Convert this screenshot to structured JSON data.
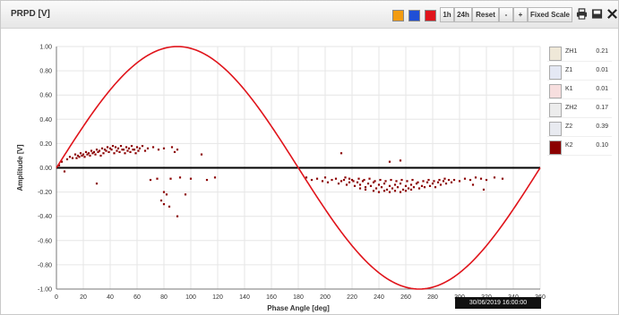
{
  "window": {
    "title": "PRPD [V]"
  },
  "toolbar": {
    "colors": [
      "#f39c12",
      "#1f4fd6",
      "#e0141b"
    ],
    "btn_1h": "1h",
    "btn_24h": "24h",
    "btn_reset": "Reset",
    "btn_minus": "-",
    "btn_plus": "+",
    "btn_fixed_scale": "Fixed Scale",
    "icons": [
      "print-icon",
      "save-icon",
      "close-icon"
    ]
  },
  "legend": [
    {
      "name": "ZH1",
      "value": "0.21",
      "color": "#efe8d8"
    },
    {
      "name": "Z1",
      "value": "0.01",
      "color": "#e4e8f4"
    },
    {
      "name": "K1",
      "value": "0.01",
      "color": "#f7dede"
    },
    {
      "name": "ZH2",
      "value": "0.17",
      "color": "#ececec"
    },
    {
      "name": "Z2",
      "value": "0.39",
      "color": "#e8eaf0"
    },
    {
      "name": "K2",
      "value": "0.10",
      "color": "#8b0000"
    }
  ],
  "timestamp": "30/06/2019 16:00:00",
  "chart_data": {
    "type": "scatter",
    "xlabel": "Phase Angle [deg]",
    "ylabel": "Amplitude [V]",
    "xlim": [
      0,
      360
    ],
    "ylim": [
      -1.0,
      1.0
    ],
    "xticks": [
      0,
      20,
      40,
      60,
      80,
      100,
      120,
      140,
      160,
      180,
      200,
      220,
      240,
      260,
      280,
      300,
      320,
      340,
      360
    ],
    "yticks": [
      1.0,
      0.8,
      0.6,
      0.4,
      0.2,
      0.0,
      -0.2,
      -0.4,
      -0.6,
      -0.8,
      -1.0
    ],
    "ytick_labels": [
      "1.00",
      "0.80",
      "0.60",
      "0.40",
      "0.20",
      "0.00",
      "-0.20",
      "-0.40",
      "-0.60",
      "-0.80",
      "-1.00"
    ],
    "grid": true,
    "reference_wave": {
      "type": "sine",
      "amplitude": 1.0,
      "color": "#e0141b"
    },
    "zero_line_color": "#000000",
    "series": [
      {
        "color": "#8b0000",
        "points": [
          [
            2,
            0.02
          ],
          [
            4,
            0.05
          ],
          [
            6,
            -0.03
          ],
          [
            8,
            0.07
          ],
          [
            10,
            0.09
          ],
          [
            12,
            0.08
          ],
          [
            14,
            0.11
          ],
          [
            16,
            0.1
          ],
          [
            18,
            0.12
          ],
          [
            20,
            0.11
          ],
          [
            22,
            0.13
          ],
          [
            24,
            0.12
          ],
          [
            26,
            0.14
          ],
          [
            28,
            0.13
          ],
          [
            30,
            0.15
          ],
          [
            32,
            0.14
          ],
          [
            34,
            0.16
          ],
          [
            36,
            0.15
          ],
          [
            38,
            0.17
          ],
          [
            40,
            0.16
          ],
          [
            42,
            0.18
          ],
          [
            44,
            0.17
          ],
          [
            46,
            0.16
          ],
          [
            48,
            0.18
          ],
          [
            50,
            0.15
          ],
          [
            52,
            0.17
          ],
          [
            54,
            0.16
          ],
          [
            56,
            0.18
          ],
          [
            58,
            0.15
          ],
          [
            60,
            0.17
          ],
          [
            62,
            0.16
          ],
          [
            64,
            0.18
          ],
          [
            66,
            0.14
          ],
          [
            68,
            0.16
          ],
          [
            72,
            0.17
          ],
          [
            76,
            0.15
          ],
          [
            80,
            0.16
          ],
          [
            86,
            0.17
          ],
          [
            88,
            0.13
          ],
          [
            90,
            0.15
          ],
          [
            108,
            0.11
          ],
          [
            25,
            0.1
          ],
          [
            27,
            0.12
          ],
          [
            29,
            0.11
          ],
          [
            31,
            0.13
          ],
          [
            33,
            0.1
          ],
          [
            35,
            0.12
          ],
          [
            37,
            0.14
          ],
          [
            39,
            0.13
          ],
          [
            41,
            0.15
          ],
          [
            43,
            0.12
          ],
          [
            45,
            0.14
          ],
          [
            47,
            0.13
          ],
          [
            49,
            0.15
          ],
          [
            51,
            0.12
          ],
          [
            53,
            0.14
          ],
          [
            55,
            0.13
          ],
          [
            57,
            0.15
          ],
          [
            59,
            0.12
          ],
          [
            61,
            0.14
          ],
          [
            15,
            0.08
          ],
          [
            17,
            0.09
          ],
          [
            19,
            0.1
          ],
          [
            21,
            0.09
          ],
          [
            23,
            0.11
          ],
          [
            30,
            -0.13
          ],
          [
            70,
            -0.1
          ],
          [
            75,
            -0.09
          ],
          [
            80,
            -0.2
          ],
          [
            82,
            -0.22
          ],
          [
            78,
            -0.27
          ],
          [
            80,
            -0.3
          ],
          [
            84,
            -0.32
          ],
          [
            90,
            -0.4
          ],
          [
            96,
            -0.22
          ],
          [
            100,
            -0.09
          ],
          [
            112,
            -0.1
          ],
          [
            118,
            -0.08
          ],
          [
            92,
            -0.08
          ],
          [
            85,
            -0.09
          ],
          [
            186,
            -0.08
          ],
          [
            190,
            -0.1
          ],
          [
            194,
            -0.09
          ],
          [
            198,
            -0.11
          ],
          [
            200,
            -0.08
          ],
          [
            202,
            -0.12
          ],
          [
            205,
            -0.1
          ],
          [
            208,
            -0.09
          ],
          [
            210,
            -0.13
          ],
          [
            212,
            -0.11
          ],
          [
            214,
            -0.1
          ],
          [
            216,
            -0.14
          ],
          [
            218,
            -0.12
          ],
          [
            220,
            -0.1
          ],
          [
            222,
            -0.15
          ],
          [
            224,
            -0.12
          ],
          [
            226,
            -0.14
          ],
          [
            228,
            -0.11
          ],
          [
            230,
            -0.16
          ],
          [
            232,
            -0.13
          ],
          [
            234,
            -0.15
          ],
          [
            236,
            -0.12
          ],
          [
            238,
            -0.17
          ],
          [
            240,
            -0.14
          ],
          [
            242,
            -0.16
          ],
          [
            244,
            -0.13
          ],
          [
            246,
            -0.18
          ],
          [
            248,
            -0.15
          ],
          [
            250,
            -0.17
          ],
          [
            252,
            -0.14
          ],
          [
            254,
            -0.16
          ],
          [
            256,
            -0.13
          ],
          [
            258,
            -0.18
          ],
          [
            260,
            -0.15
          ],
          [
            262,
            -0.17
          ],
          [
            264,
            -0.14
          ],
          [
            266,
            -0.16
          ],
          [
            268,
            -0.13
          ],
          [
            270,
            -0.17
          ],
          [
            272,
            -0.15
          ],
          [
            274,
            -0.16
          ],
          [
            276,
            -0.12
          ],
          [
            278,
            -0.15
          ],
          [
            280,
            -0.13
          ],
          [
            282,
            -0.16
          ],
          [
            284,
            -0.12
          ],
          [
            286,
            -0.14
          ],
          [
            288,
            -0.11
          ],
          [
            290,
            -0.13
          ],
          [
            292,
            -0.1
          ],
          [
            294,
            -0.12
          ],
          [
            296,
            -0.1
          ],
          [
            300,
            -0.11
          ],
          [
            304,
            -0.09
          ],
          [
            308,
            -0.1
          ],
          [
            312,
            -0.08
          ],
          [
            316,
            -0.09
          ],
          [
            320,
            -0.1
          ],
          [
            326,
            -0.08
          ],
          [
            332,
            -0.09
          ],
          [
            236,
            -0.19
          ],
          [
            240,
            -0.2
          ],
          [
            244,
            -0.19
          ],
          [
            248,
            -0.2
          ],
          [
            252,
            -0.19
          ],
          [
            256,
            -0.2
          ],
          [
            260,
            -0.19
          ],
          [
            264,
            -0.18
          ],
          [
            230,
            -0.18
          ],
          [
            226,
            -0.17
          ],
          [
            215,
            -0.08
          ],
          [
            218,
            -0.09
          ],
          [
            221,
            -0.11
          ],
          [
            225,
            -0.09
          ],
          [
            229,
            -0.1
          ],
          [
            233,
            -0.09
          ],
          [
            237,
            -0.11
          ],
          [
            241,
            -0.1
          ],
          [
            245,
            -0.11
          ],
          [
            249,
            -0.1
          ],
          [
            253,
            -0.11
          ],
          [
            257,
            -0.1
          ],
          [
            261,
            -0.11
          ],
          [
            265,
            -0.1
          ],
          [
            269,
            -0.12
          ],
          [
            273,
            -0.11
          ],
          [
            277,
            -0.1
          ],
          [
            281,
            -0.11
          ],
          [
            285,
            -0.1
          ],
          [
            289,
            -0.09
          ],
          [
            212,
            0.12
          ],
          [
            248,
            0.05
          ],
          [
            256,
            0.06
          ],
          [
            318,
            -0.18
          ],
          [
            310,
            -0.14
          ]
        ]
      }
    ]
  }
}
